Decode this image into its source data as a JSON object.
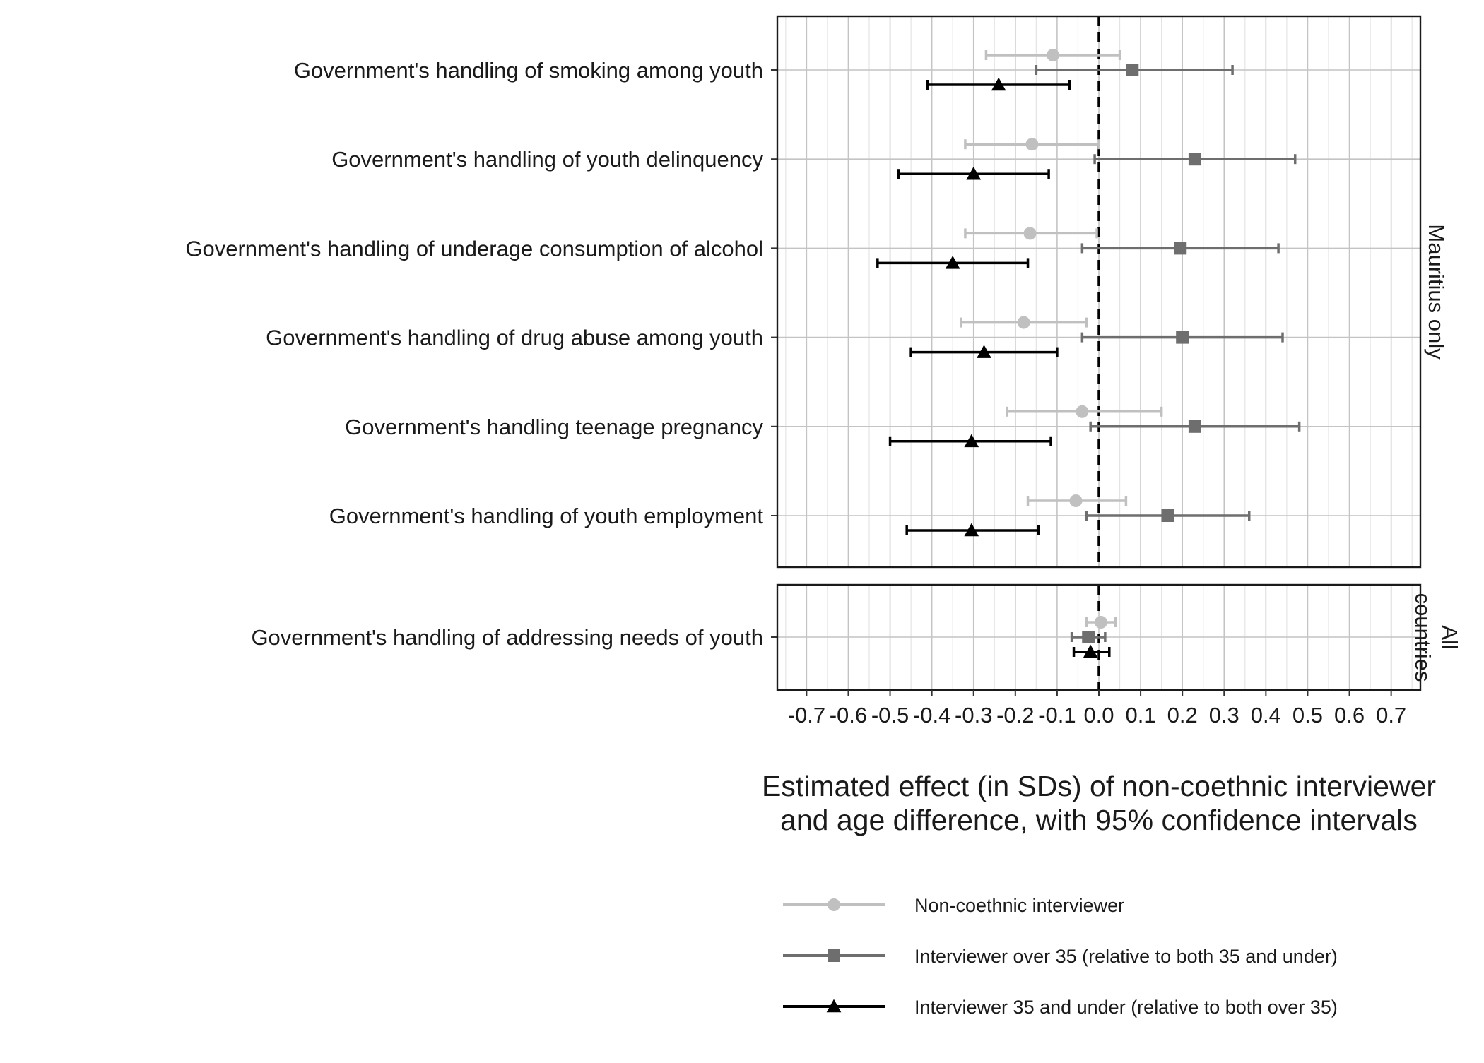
{
  "chart_data": {
    "type": "scatter",
    "subtype": "coefficient-plot-with-confidence-intervals",
    "xlabel_lines": [
      "Estimated effect (in SDs) of non-coethnic interviewer",
      "and age difference, with 95% confidence intervals"
    ],
    "xlim": [
      -0.77,
      0.77
    ],
    "xticks": [
      -0.7,
      -0.6,
      -0.5,
      -0.4,
      -0.3,
      -0.2,
      -0.1,
      0.0,
      0.1,
      0.2,
      0.3,
      0.4,
      0.5,
      0.6,
      0.7
    ],
    "xtick_labels": [
      "-0.7",
      "-0.6",
      "-0.5",
      "-0.4",
      "-0.3",
      "-0.2",
      "-0.1",
      "0.0",
      "0.1",
      "0.2",
      "0.3",
      "0.4",
      "0.5",
      "0.6",
      "0.7"
    ],
    "reference_line_x": 0,
    "grid": true,
    "legend_position": "bottom",
    "series": [
      {
        "key": "noncoethnic",
        "name": "Non-coethnic interviewer",
        "color": "#c0c0c0",
        "marker": "circle"
      },
      {
        "key": "over35",
        "name": "Interviewer over 35 (relative to both 35 and under)",
        "color": "#6e6e6e",
        "marker": "square"
      },
      {
        "key": "under35",
        "name": "Interviewer 35 and under (relative to both over 35)",
        "color": "#000000",
        "marker": "triangle"
      }
    ],
    "panels": [
      {
        "label": "Mauritius only",
        "items": [
          {
            "label": "Government's handling of smoking among youth",
            "estimates": {
              "noncoethnic": {
                "value": -0.11,
                "lo": -0.27,
                "hi": 0.05
              },
              "over35": {
                "value": 0.08,
                "lo": -0.15,
                "hi": 0.32
              },
              "under35": {
                "value": -0.24,
                "lo": -0.41,
                "hi": -0.07
              }
            }
          },
          {
            "label": "Government's handling of youth delinquency",
            "estimates": {
              "noncoethnic": {
                "value": -0.16,
                "lo": -0.32,
                "hi": 0.0
              },
              "over35": {
                "value": 0.23,
                "lo": -0.01,
                "hi": 0.47
              },
              "under35": {
                "value": -0.3,
                "lo": -0.48,
                "hi": -0.12
              }
            }
          },
          {
            "label": "Government's handling of underage consumption of alcohol",
            "estimates": {
              "noncoethnic": {
                "value": -0.165,
                "lo": -0.32,
                "hi": -0.005
              },
              "over35": {
                "value": 0.195,
                "lo": -0.04,
                "hi": 0.43
              },
              "under35": {
                "value": -0.35,
                "lo": -0.53,
                "hi": -0.17
              }
            }
          },
          {
            "label": "Government's handling of drug abuse among youth",
            "estimates": {
              "noncoethnic": {
                "value": -0.18,
                "lo": -0.33,
                "hi": -0.03
              },
              "over35": {
                "value": 0.2,
                "lo": -0.04,
                "hi": 0.44
              },
              "under35": {
                "value": -0.275,
                "lo": -0.45,
                "hi": -0.1
              }
            }
          },
          {
            "label": "Government's handling teenage pregnancy",
            "estimates": {
              "noncoethnic": {
                "value": -0.04,
                "lo": -0.22,
                "hi": 0.15
              },
              "over35": {
                "value": 0.23,
                "lo": -0.02,
                "hi": 0.48
              },
              "under35": {
                "value": -0.305,
                "lo": -0.5,
                "hi": -0.115
              }
            }
          },
          {
            "label": "Government's handling of youth employment",
            "estimates": {
              "noncoethnic": {
                "value": -0.055,
                "lo": -0.17,
                "hi": 0.065
              },
              "over35": {
                "value": 0.165,
                "lo": -0.03,
                "hi": 0.36
              },
              "under35": {
                "value": -0.305,
                "lo": -0.46,
                "hi": -0.145
              }
            }
          }
        ]
      },
      {
        "label": "All countries",
        "label_lines": [
          "All",
          "countries"
        ],
        "items": [
          {
            "label": "Government's handling of addressing needs of youth",
            "estimates": {
              "noncoethnic": {
                "value": 0.005,
                "lo": -0.03,
                "hi": 0.04
              },
              "over35": {
                "value": -0.025,
                "lo": -0.065,
                "hi": 0.015
              },
              "under35": {
                "value": -0.02,
                "lo": -0.06,
                "hi": 0.025
              }
            }
          }
        ]
      }
    ]
  }
}
